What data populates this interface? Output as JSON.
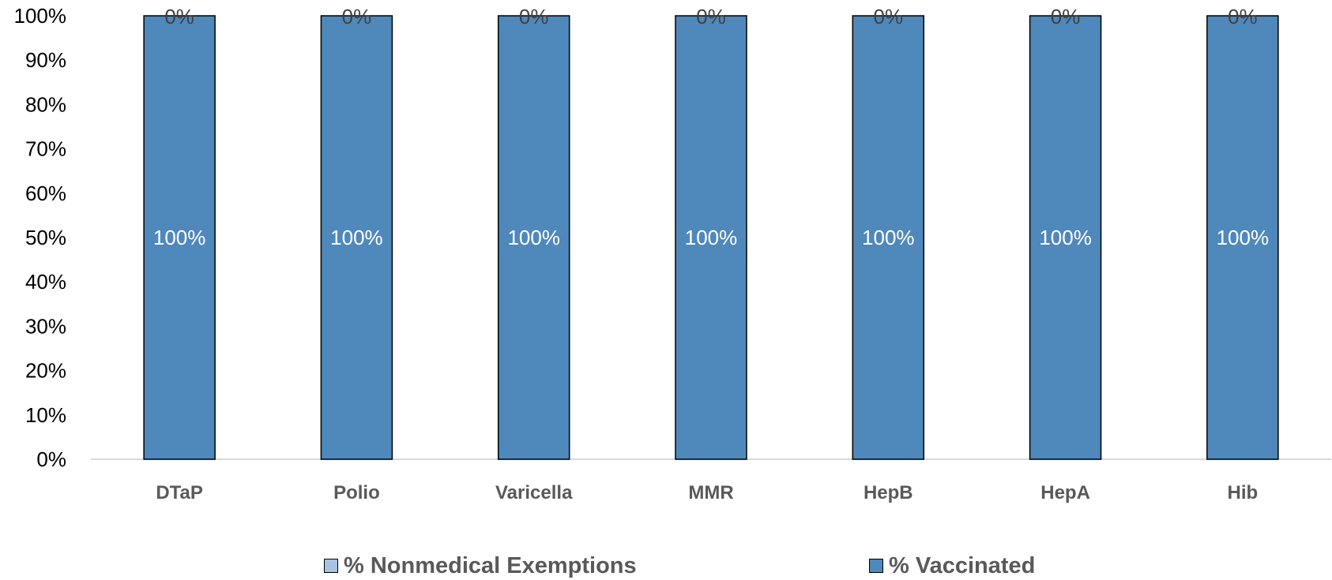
{
  "chart_data": {
    "type": "bar",
    "stacked": true,
    "categories": [
      "DTaP",
      "Polio",
      "Varicella",
      "MMR",
      "HepB",
      "HepA",
      "Hib"
    ],
    "series": [
      {
        "name": "% Vaccinated",
        "values": [
          100,
          100,
          100,
          100,
          100,
          100,
          100
        ],
        "labels": [
          "100%",
          "100%",
          "100%",
          "100%",
          "100%",
          "100%",
          "100%"
        ],
        "color": "#4f88bb"
      },
      {
        "name": "% Nonmedical Exemptions",
        "values": [
          0,
          0,
          0,
          0,
          0,
          0,
          0
        ],
        "labels": [
          "0%",
          "0%",
          "0%",
          "0%",
          "0%",
          "0%",
          "0%"
        ],
        "color": "#a9c4e3"
      }
    ],
    "yticks": [
      "0%",
      "10%",
      "20%",
      "30%",
      "40%",
      "50%",
      "60%",
      "70%",
      "80%",
      "90%",
      "100%"
    ],
    "ylim": [
      0,
      100
    ],
    "grid": false,
    "legend_position": "bottom",
    "title": "",
    "xlabel": "",
    "ylabel": ""
  },
  "legend": {
    "items": [
      {
        "label": "% Nonmedical Exemptions",
        "color": "#a9c4e3"
      },
      {
        "label": "% Vaccinated",
        "color": "#4f88bb"
      }
    ]
  }
}
